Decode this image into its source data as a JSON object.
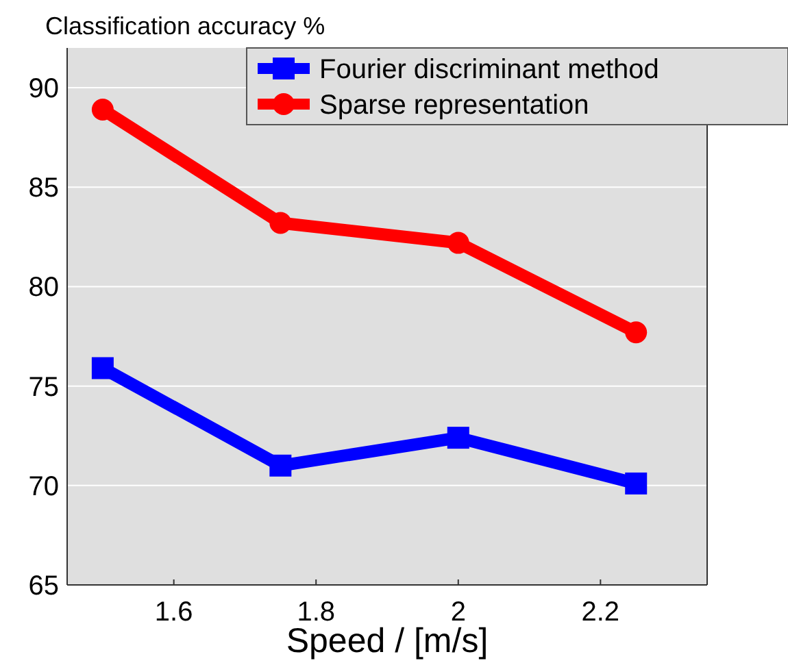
{
  "chart_data": {
    "type": "line",
    "ylabel": "Classification accuracy %",
    "xlabel": "Speed / [m/s]",
    "x": [
      1.5,
      1.75,
      2,
      2.25
    ],
    "series": [
      {
        "name": "Fourier discriminant method",
        "color": "#0000ff",
        "marker": "square",
        "values": [
          75.9,
          71.0,
          72.4,
          70.1
        ]
      },
      {
        "name": "Sparse representation",
        "color": "#ff0000",
        "marker": "circle",
        "values": [
          88.9,
          83.2,
          82.2,
          77.7
        ]
      }
    ],
    "xlim": [
      1.45,
      2.35
    ],
    "xticks": [
      1.6,
      1.8,
      2,
      2.2
    ],
    "ylim": [
      65,
      92
    ],
    "yticks": [
      65,
      70,
      75,
      80,
      85,
      90
    ],
    "grid": "y",
    "legend": "top right",
    "line_style": "solid"
  }
}
